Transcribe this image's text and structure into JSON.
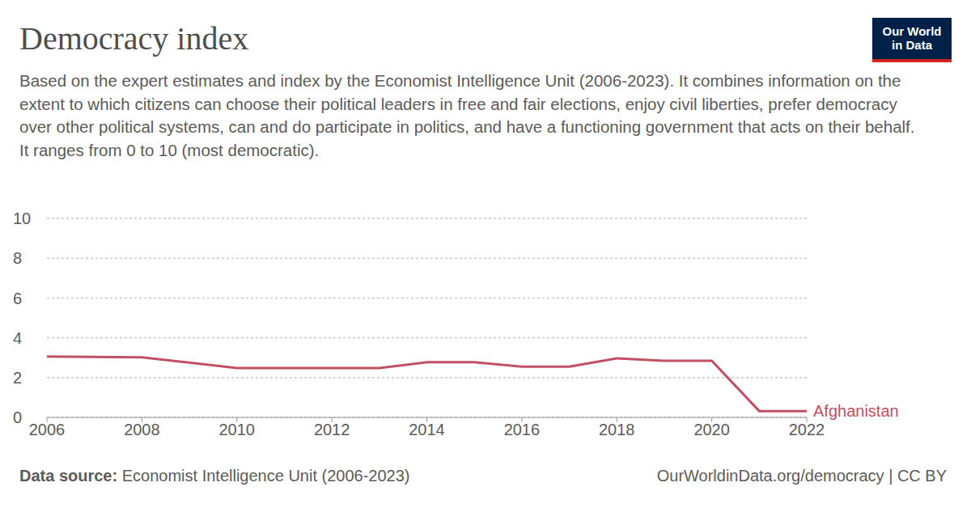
{
  "chart_data": {
    "type": "line",
    "title": "Democracy index",
    "subtitle": "Based on the expert estimates and index by the Economist Intelligence Unit (2006-2023). It combines information on the extent to which citizens can choose their political leaders in free and fair elections, enjoy civil liberties, prefer democracy over other political systems, can and do participate in politics, and have a functioning government that acts on their behalf. It ranges from 0 to 10 (most democratic).",
    "logo": [
      "Our World",
      "in Data"
    ],
    "source_label": "Data source:",
    "source": "Economist Intelligence Unit (2006-2023)",
    "credit": "OurWorldinData.org/democracy | CC BY",
    "x": [
      2006,
      2008,
      2010,
      2011,
      2012,
      2013,
      2014,
      2015,
      2016,
      2017,
      2018,
      2019,
      2020,
      2021,
      2022
    ],
    "series": [
      {
        "name": "Afghanistan",
        "color": "#c15065",
        "values": [
          3.06,
          3.02,
          2.48,
          2.48,
          2.48,
          2.48,
          2.77,
          2.77,
          2.55,
          2.55,
          2.97,
          2.85,
          2.85,
          0.32,
          0.32
        ]
      }
    ],
    "xlim": [
      2006,
      2022
    ],
    "xticks": [
      2006,
      2008,
      2010,
      2012,
      2014,
      2016,
      2018,
      2020,
      2022
    ],
    "ylim": [
      0,
      10
    ],
    "yticks": [
      0,
      2,
      4,
      6,
      8,
      10
    ],
    "grid": true
  }
}
